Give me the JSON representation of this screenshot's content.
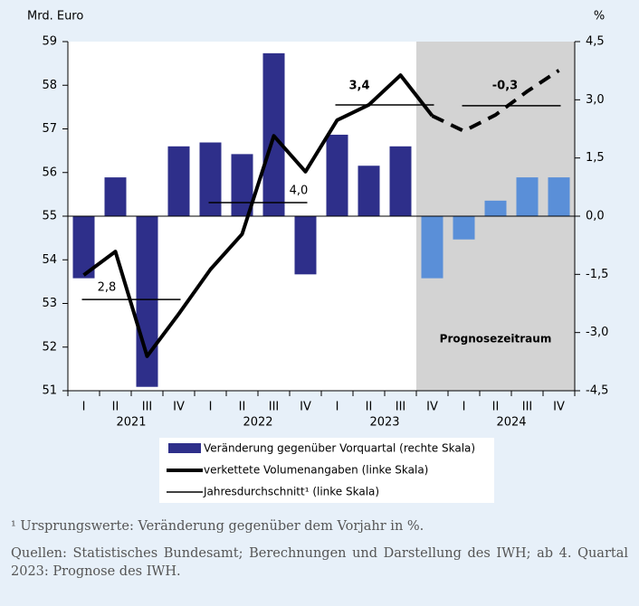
{
  "chart_data": {
    "type": "combo",
    "y_label": "Mrd. Euro",
    "y2_label": "%",
    "categories": [
      "I",
      "II",
      "III",
      "IV",
      "I",
      "II",
      "III",
      "IV",
      "I",
      "II",
      "III",
      "IV",
      "I",
      "II",
      "III",
      "IV"
    ],
    "years": [
      "2021",
      "2022",
      "2023",
      "2024"
    ],
    "series": [
      {
        "name": "Veränderung gegenüber Vorquartal (rechte Skala)",
        "type": "bar",
        "axis": "y2",
        "color": "#2e2f8a",
        "forecast_color": "#5a8fd8",
        "values": [
          -1.6,
          1.0,
          -4.4,
          1.8,
          1.9,
          1.6,
          4.2,
          -1.5,
          2.1,
          1.3,
          1.8,
          -1.6,
          -0.6,
          0.4,
          1.0,
          1.0
        ]
      },
      {
        "name": "verkettete Volumenangaben (linke Skala)",
        "type": "line",
        "axis": "y",
        "color": "#000000",
        "values": [
          53.65,
          54.19,
          51.79,
          52.76,
          53.78,
          54.59,
          56.84,
          56.02,
          57.2,
          57.55,
          58.23,
          57.3,
          56.95,
          57.32,
          57.86,
          58.34
        ]
      }
    ],
    "averages": {
      "name": "Jahresdurchschnitt¹ (linke Skala)",
      "color": "#000000",
      "level": [
        53.09,
        55.31,
        57.55,
        57.53
      ],
      "labels": [
        "2,8",
        "4,0",
        "3,4",
        "-0,3"
      ]
    },
    "forecast": {
      "label": "Prognosezeitraum",
      "start": 11,
      "color": "#d3d3d3"
    },
    "ylim": [
      51,
      59
    ],
    "yticks": [
      51,
      52,
      53,
      54,
      55,
      56,
      57,
      58,
      59
    ],
    "y2lim": [
      -4.5,
      4.5
    ],
    "y2ticks": [
      {
        "value": -4.5,
        "label": "-4,5"
      },
      {
        "value": -3,
        "label": "-3,0"
      },
      {
        "value": -1.5,
        "label": "-1,5"
      },
      {
        "value": 0,
        "label": "0,0"
      },
      {
        "value": 1.5,
        "label": "1,5"
      },
      {
        "value": 3,
        "label": "3,0"
      },
      {
        "value": 4.5,
        "label": "4,5"
      }
    ]
  },
  "notes": [
    "¹ Ursprungswerte: Veränderung gegenüber dem Vorjahr in %.",
    "Quellen: Statistisches Bundesamt; Berechnungen und Darstellung des IWH; ab 4. Quartal 2023: Prognose des IWH."
  ]
}
